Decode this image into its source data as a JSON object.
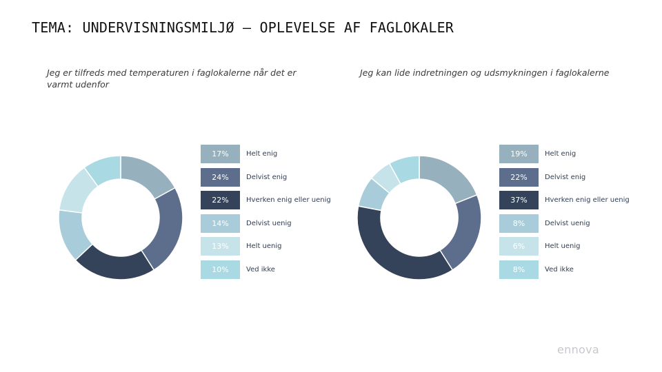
{
  "page": {
    "title": "TEMA: UNDERVISNINGSMILJØ – OPLEVELSE AF FAGLOKALER"
  },
  "logo": {
    "text": "ennova"
  },
  "colors": [
    "#97b0be",
    "#5d6e8c",
    "#34425a",
    "#a8ccd9",
    "#c7e3ea",
    "#a9d9e3"
  ],
  "chart_data": [
    {
      "type": "pie",
      "subtitle": "Jeg er tilfreds med temperaturen i faglokalerne når det er varmt udenfor",
      "categories": [
        "Helt enig",
        "Delvist enig",
        "Hverken enig eller uenig",
        "Delvist uenig",
        "Helt uenig",
        "Ved ikke"
      ],
      "values": [
        17,
        24,
        22,
        14,
        13,
        10
      ],
      "labels": [
        "17%",
        "24%",
        "22%",
        "14%",
        "13%",
        "10%"
      ],
      "legend": "right"
    },
    {
      "type": "pie",
      "subtitle": "Jeg kan lide indretningen og udsmykningen i faglokalerne",
      "categories": [
        "Helt enig",
        "Delvist enig",
        "Hverken enig eller uenig",
        "Delvist uenig",
        "Helt uenig",
        "Ved ikke"
      ],
      "values": [
        19,
        22,
        37,
        8,
        6,
        8
      ],
      "labels": [
        "19%",
        "22%",
        "37%",
        "8%",
        "6%",
        "8%"
      ],
      "legend": "right"
    }
  ]
}
